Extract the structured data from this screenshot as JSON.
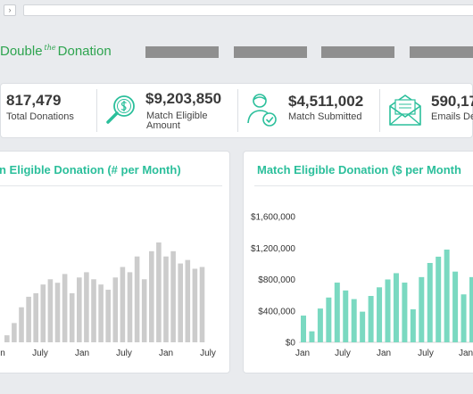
{
  "browser": {
    "nav_glyph": "›",
    "url": ""
  },
  "header": {
    "logo": {
      "part1": "Double",
      "part2": "the",
      "part3": "Donation"
    }
  },
  "stats": [
    {
      "value": "817,479",
      "label_lines": [
        "Total Donations"
      ]
    },
    {
      "value": "$9,203,850",
      "label_lines": [
        "Match Eligible",
        "Amount"
      ],
      "icon": "search-dollar-icon"
    },
    {
      "value": "$4,511,002",
      "label_lines": [
        "Match Submitted"
      ],
      "icon": "user-check-icon"
    },
    {
      "value": "590,17",
      "label_lines": [
        "Emails De"
      ],
      "icon": "envelope-icon"
    }
  ],
  "colors": {
    "brand": "#2ea44f",
    "teal": "#2bbf9b",
    "teal_bar": "#7ad9c1",
    "gray_bar": "#cccccc"
  },
  "charts": {
    "count": {
      "title": "n Eligible Donation (# per Month)",
      "x_ticks": [
        "n",
        "July",
        "Jan",
        "July",
        "Jan",
        "July"
      ]
    },
    "amount": {
      "title": "Match Eligible Donation ($ per Month",
      "y_ticks": [
        "$1,600,000",
        "$1,200,000",
        "$800,000",
        "$400,000",
        "$0"
      ],
      "x_ticks": [
        "Jan",
        "July",
        "Jan",
        "July",
        "Jan"
      ]
    }
  },
  "chart_data": [
    {
      "type": "bar",
      "title": "n Eligible Donation (# per Month)",
      "x_tick_labels": [
        "n",
        "July",
        "Jan",
        "July",
        "Jan",
        "July"
      ],
      "values": [
        8,
        22,
        40,
        52,
        56,
        66,
        72,
        68,
        78,
        56,
        74,
        80,
        72,
        66,
        60,
        74,
        86,
        80,
        98,
        72,
        104,
        114,
        98,
        104,
        90,
        94,
        84,
        86
      ],
      "y_unit": "relative (unlabeled axis)",
      "grid": false,
      "color": "#cccccc"
    },
    {
      "type": "bar",
      "title": "Match Eligible Donation ($ per Month",
      "x_tick_labels": [
        "Jan",
        "July",
        "Jan",
        "July",
        "Jan"
      ],
      "ylim": [
        0,
        1600000
      ],
      "y_tick_labels": [
        "$1,600,000",
        "$1,200,000",
        "$800,000",
        "$400,000",
        "$0"
      ],
      "values": [
        340000,
        140000,
        430000,
        570000,
        760000,
        660000,
        550000,
        390000,
        590000,
        700000,
        800000,
        880000,
        760000,
        420000,
        830000,
        1010000,
        1090000,
        1180000,
        900000,
        610000,
        830000,
        990000,
        1120000,
        1170000
      ],
      "grid": false,
      "color": "#7ad9c1"
    }
  ]
}
